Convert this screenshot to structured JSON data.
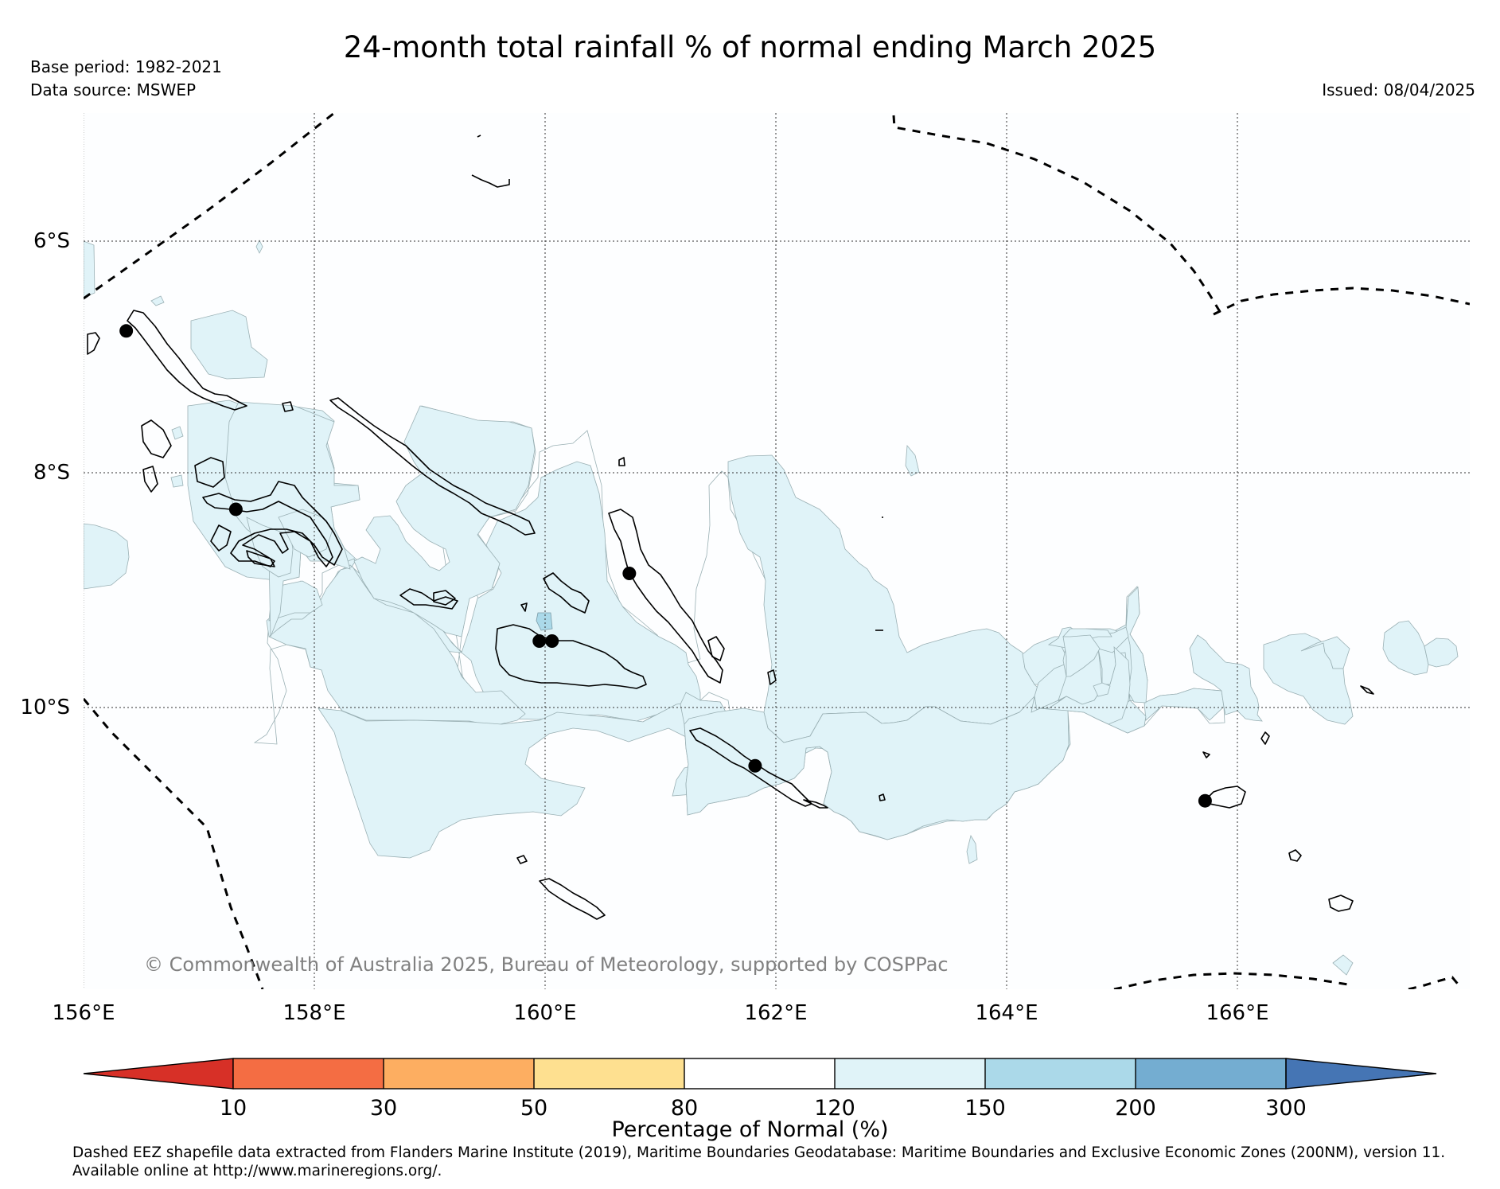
{
  "header": {
    "title": "24-month total rainfall % of normal ending March 2025",
    "base_period": "Base period: 1982-2021",
    "data_source": "Data source: MSWEP",
    "issued": "Issued: 08/04/2025"
  },
  "map": {
    "longitude_labels": [
      "156°E",
      "158°E",
      "160°E",
      "162°E",
      "164°E",
      "166°E"
    ],
    "latitude_labels": [
      "6°S",
      "8°S",
      "10°S"
    ],
    "extent": {
      "lon": [
        156,
        168
      ],
      "lat": [
        -5,
        -12.5
      ]
    },
    "gridlines": true,
    "copyright": "© Commonwealth of Australia 2025, Bureau of Meteorology, supported by COSPPac",
    "stations": [
      {
        "lon": 156.37,
        "lat": -6.77
      },
      {
        "lon": 157.32,
        "lat": -8.3
      },
      {
        "lon": 160.73,
        "lat": -8.85
      },
      {
        "lon": 159.95,
        "lat": -9.43
      },
      {
        "lon": 160.06,
        "lat": -9.43
      },
      {
        "lon": 161.82,
        "lat": -10.5
      },
      {
        "lon": 165.72,
        "lat": -10.8
      }
    ]
  },
  "legend": {
    "title": "Percentage of Normal (%)",
    "tick_labels": [
      "10",
      "30",
      "50",
      "80",
      "120",
      "150",
      "200",
      "300"
    ],
    "colors": [
      "#d73027",
      "#f46d43",
      "#fdae61",
      "#fee090",
      "#ffffff",
      "#e0f3f8",
      "#abd9e9",
      "#74add1",
      "#4575b4"
    ]
  },
  "footnote": {
    "line1": "Dashed EEZ shapefile data extracted from Flanders Marine Institute (2019), Maritime Boundaries Geodatabase: Maritime Boundaries and Exclusive Economic Zones (200NM), version 11.",
    "line2": "Available online at http://www.marineregions.org/."
  }
}
